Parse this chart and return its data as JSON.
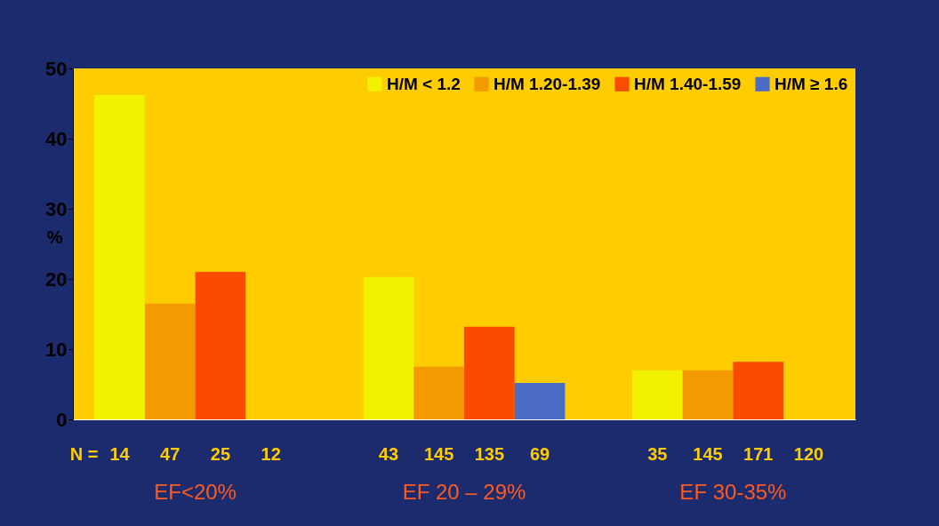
{
  "chart_data": {
    "type": "bar",
    "ylabel": "%",
    "categories": [
      "EF<20%",
      "EF 20 – 29%",
      "EF 30-35%"
    ],
    "series": [
      {
        "name": "H/M < 1.2",
        "color": "#f2f200",
        "values": [
          46.2,
          20.3,
          7
        ]
      },
      {
        "name": "H/M 1.20-1.39",
        "color": "#f39a00",
        "values": [
          16.5,
          7.5,
          7
        ]
      },
      {
        "name": "H/M 1.40-1.59",
        "color": "#fa4c00",
        "values": [
          21,
          13.2,
          8.2
        ]
      },
      {
        "name": "H/M ≥ 1.6",
        "color": "#4a6cc4",
        "values": [
          0,
          5.2,
          0
        ]
      }
    ],
    "ylim": [
      0,
      50
    ],
    "yticks": [
      0,
      10,
      20,
      30,
      40,
      50
    ],
    "legend": "top right",
    "annotations": [
      "N =",
      "14",
      "47",
      "25",
      "12",
      "43",
      "145",
      "135",
      "69",
      "35",
      "145",
      "171",
      "120"
    ]
  }
}
